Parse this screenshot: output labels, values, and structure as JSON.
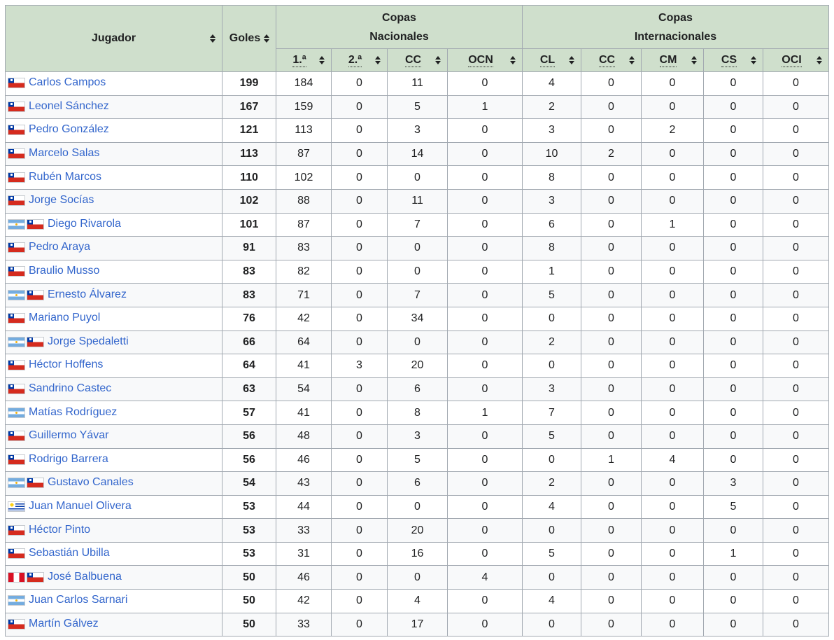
{
  "header": {
    "player": "Jugador",
    "goals": "Goles",
    "group_national": [
      "Copas",
      "Nacionales"
    ],
    "group_international": [
      "Copas",
      "Internacionales"
    ],
    "sub": [
      "1.ª",
      "2.ª",
      "CC",
      "OCN",
      "CL",
      "CC",
      "CM",
      "CS",
      "OCI"
    ]
  },
  "rows": [
    {
      "flags": [
        "chile-flag-icon"
      ],
      "name": "Carlos Campos",
      "goals": "199",
      "values": [
        "184",
        "0",
        "11",
        "0",
        "4",
        "0",
        "0",
        "0",
        "0"
      ]
    },
    {
      "flags": [
        "chile-flag-icon"
      ],
      "name": "Leonel Sánchez",
      "goals": "167",
      "values": [
        "159",
        "0",
        "5",
        "1",
        "2",
        "0",
        "0",
        "0",
        "0"
      ]
    },
    {
      "flags": [
        "chile-flag-icon"
      ],
      "name": "Pedro González",
      "goals": "121",
      "values": [
        "113",
        "0",
        "3",
        "0",
        "3",
        "0",
        "2",
        "0",
        "0"
      ]
    },
    {
      "flags": [
        "chile-flag-icon"
      ],
      "name": "Marcelo Salas",
      "goals": "113",
      "values": [
        "87",
        "0",
        "14",
        "0",
        "10",
        "2",
        "0",
        "0",
        "0"
      ]
    },
    {
      "flags": [
        "chile-flag-icon"
      ],
      "name": "Rubén Marcos",
      "goals": "110",
      "values": [
        "102",
        "0",
        "0",
        "0",
        "8",
        "0",
        "0",
        "0",
        "0"
      ]
    },
    {
      "flags": [
        "chile-flag-icon"
      ],
      "name": "Jorge Socías",
      "goals": "102",
      "values": [
        "88",
        "0",
        "11",
        "0",
        "3",
        "0",
        "0",
        "0",
        "0"
      ]
    },
    {
      "flags": [
        "argentina-flag-icon",
        "chile-flag-icon"
      ],
      "name": "Diego Rivarola",
      "goals": "101",
      "values": [
        "87",
        "0",
        "7",
        "0",
        "6",
        "0",
        "1",
        "0",
        "0"
      ]
    },
    {
      "flags": [
        "chile-flag-icon"
      ],
      "name": "Pedro Araya",
      "goals": "91",
      "values": [
        "83",
        "0",
        "0",
        "0",
        "8",
        "0",
        "0",
        "0",
        "0"
      ]
    },
    {
      "flags": [
        "chile-flag-icon"
      ],
      "name": "Braulio Musso",
      "goals": "83",
      "values": [
        "82",
        "0",
        "0",
        "0",
        "1",
        "0",
        "0",
        "0",
        "0"
      ]
    },
    {
      "flags": [
        "argentina-flag-icon",
        "chile-flag-icon"
      ],
      "name": "Ernesto Álvarez",
      "goals": "83",
      "values": [
        "71",
        "0",
        "7",
        "0",
        "5",
        "0",
        "0",
        "0",
        "0"
      ]
    },
    {
      "flags": [
        "chile-flag-icon"
      ],
      "name": "Mariano Puyol",
      "goals": "76",
      "values": [
        "42",
        "0",
        "34",
        "0",
        "0",
        "0",
        "0",
        "0",
        "0"
      ]
    },
    {
      "flags": [
        "argentina-flag-icon",
        "chile-flag-icon"
      ],
      "name": "Jorge Spedaletti",
      "goals": "66",
      "values": [
        "64",
        "0",
        "0",
        "0",
        "2",
        "0",
        "0",
        "0",
        "0"
      ]
    },
    {
      "flags": [
        "chile-flag-icon"
      ],
      "name": "Héctor Hoffens",
      "goals": "64",
      "values": [
        "41",
        "3",
        "20",
        "0",
        "0",
        "0",
        "0",
        "0",
        "0"
      ]
    },
    {
      "flags": [
        "chile-flag-icon"
      ],
      "name": "Sandrino Castec",
      "goals": "63",
      "values": [
        "54",
        "0",
        "6",
        "0",
        "3",
        "0",
        "0",
        "0",
        "0"
      ]
    },
    {
      "flags": [
        "argentina-flag-icon"
      ],
      "name": "Matías Rodríguez",
      "goals": "57",
      "values": [
        "41",
        "0",
        "8",
        "1",
        "7",
        "0",
        "0",
        "0",
        "0"
      ]
    },
    {
      "flags": [
        "chile-flag-icon"
      ],
      "name": "Guillermo Yávar",
      "goals": "56",
      "values": [
        "48",
        "0",
        "3",
        "0",
        "5",
        "0",
        "0",
        "0",
        "0"
      ]
    },
    {
      "flags": [
        "chile-flag-icon"
      ],
      "name": "Rodrigo Barrera",
      "goals": "56",
      "values": [
        "46",
        "0",
        "5",
        "0",
        "0",
        "1",
        "4",
        "0",
        "0"
      ]
    },
    {
      "flags": [
        "argentina-flag-icon",
        "chile-flag-icon"
      ],
      "name": "Gustavo Canales",
      "goals": "54",
      "values": [
        "43",
        "0",
        "6",
        "0",
        "2",
        "0",
        "0",
        "3",
        "0"
      ]
    },
    {
      "flags": [
        "uruguay-flag-icon"
      ],
      "name": "Juan Manuel Olivera",
      "goals": "53",
      "values": [
        "44",
        "0",
        "0",
        "0",
        "4",
        "0",
        "0",
        "5",
        "0"
      ]
    },
    {
      "flags": [
        "chile-flag-icon"
      ],
      "name": "Héctor Pinto",
      "goals": "53",
      "values": [
        "33",
        "0",
        "20",
        "0",
        "0",
        "0",
        "0",
        "0",
        "0"
      ]
    },
    {
      "flags": [
        "chile-flag-icon"
      ],
      "name": "Sebastián Ubilla",
      "goals": "53",
      "values": [
        "31",
        "0",
        "16",
        "0",
        "5",
        "0",
        "0",
        "1",
        "0"
      ]
    },
    {
      "flags": [
        "peru-flag-icon",
        "chile-flag-icon"
      ],
      "name": "José Balbuena",
      "goals": "50",
      "values": [
        "46",
        "0",
        "0",
        "4",
        "0",
        "0",
        "0",
        "0",
        "0"
      ]
    },
    {
      "flags": [
        "argentina-flag-icon"
      ],
      "name": "Juan Carlos Sarnari",
      "goals": "50",
      "values": [
        "42",
        "0",
        "4",
        "0",
        "4",
        "0",
        "0",
        "0",
        "0"
      ]
    },
    {
      "flags": [
        "chile-flag-icon"
      ],
      "name": "Martín Gálvez",
      "goals": "50",
      "values": [
        "33",
        "0",
        "17",
        "0",
        "0",
        "0",
        "0",
        "0",
        "0"
      ]
    }
  ]
}
